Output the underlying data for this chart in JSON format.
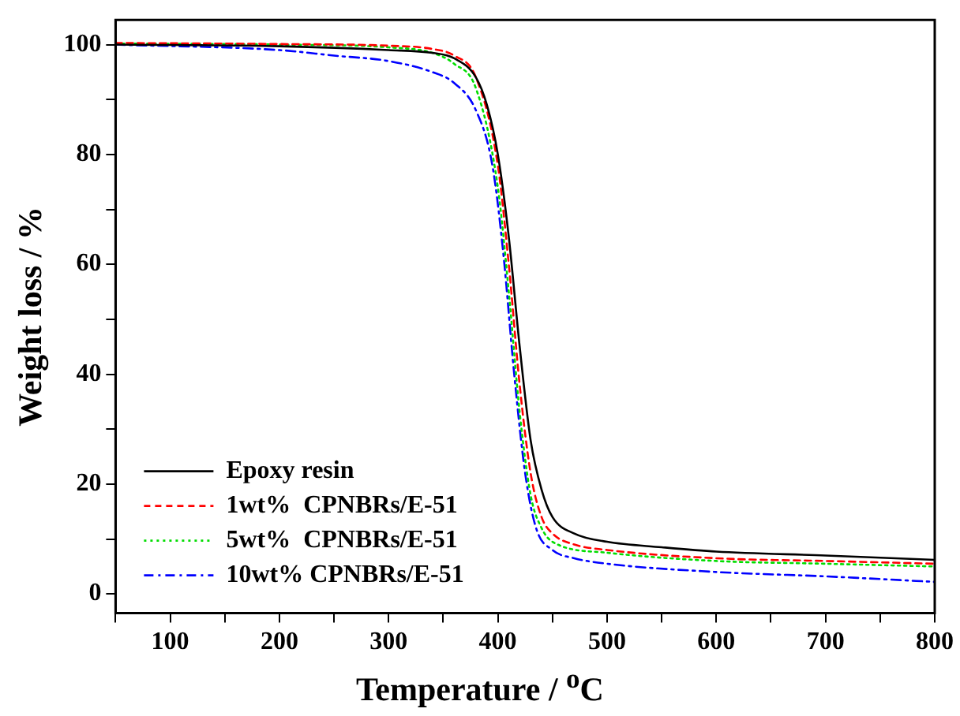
{
  "chart_data": {
    "type": "line",
    "xlabel": "Temperature / $^{o}$C",
    "ylabel": "Weight loss / %",
    "xlim": [
      50,
      800
    ],
    "xticks": [
      100,
      200,
      300,
      400,
      500,
      600,
      700,
      800
    ],
    "ylim": [
      -3.5,
      104.5
    ],
    "yticks": [
      0,
      20,
      40,
      60,
      80,
      100
    ],
    "grid": false,
    "legend": "bottom left",
    "marker": "none",
    "series": [
      {
        "name": "Epoxy resin",
        "color": "#000000",
        "line_style": "solid",
        "x": [
          50,
          200,
          300,
          340,
          360,
          380,
          390,
          400,
          410,
          420,
          430,
          440,
          450,
          470,
          500,
          550,
          600,
          700,
          800
        ],
        "values": [
          100,
          99.7,
          99,
          98.5,
          97.5,
          94,
          89,
          80,
          65,
          45,
          28,
          19,
          14,
          11,
          9.5,
          8.5,
          7.7,
          7,
          6.2
        ]
      },
      {
        "name": "1wt%  CPNBRs/E-51",
        "color": "#ff0000",
        "line_style": "dashed",
        "x": [
          50,
          200,
          300,
          340,
          360,
          380,
          400,
          410,
          420,
          430,
          440,
          450,
          470,
          500,
          600,
          700,
          800
        ],
        "values": [
          100.3,
          100.1,
          99.8,
          99.2,
          98,
          94,
          78,
          60,
          38,
          22,
          14,
          11,
          9,
          8,
          6.5,
          6,
          5.5
        ]
      },
      {
        "name": "5wt%  CPNBRs/E-51",
        "color": "#00dd00",
        "line_style": "dotted",
        "x": [
          50,
          200,
          300,
          340,
          360,
          380,
          400,
          410,
          420,
          430,
          440,
          450,
          500,
          600,
          700,
          800
        ],
        "values": [
          100.2,
          100,
          99.5,
          98.5,
          96.5,
          92,
          74,
          55,
          33,
          18,
          12,
          9.5,
          7.5,
          6,
          5.5,
          5
        ]
      },
      {
        "name": "10wt% CPNBRs/E-51",
        "color": "#0000ff",
        "line_style": "dashdot",
        "x": [
          50,
          200,
          250,
          300,
          340,
          360,
          380,
          395,
          405,
          415,
          425,
          435,
          450,
          470,
          500,
          600,
          700,
          800
        ],
        "values": [
          100,
          99,
          98,
          97,
          95,
          93,
          88,
          78,
          62,
          40,
          22,
          12,
          8,
          6.5,
          5.5,
          4,
          3.2,
          2.2
        ]
      }
    ]
  }
}
